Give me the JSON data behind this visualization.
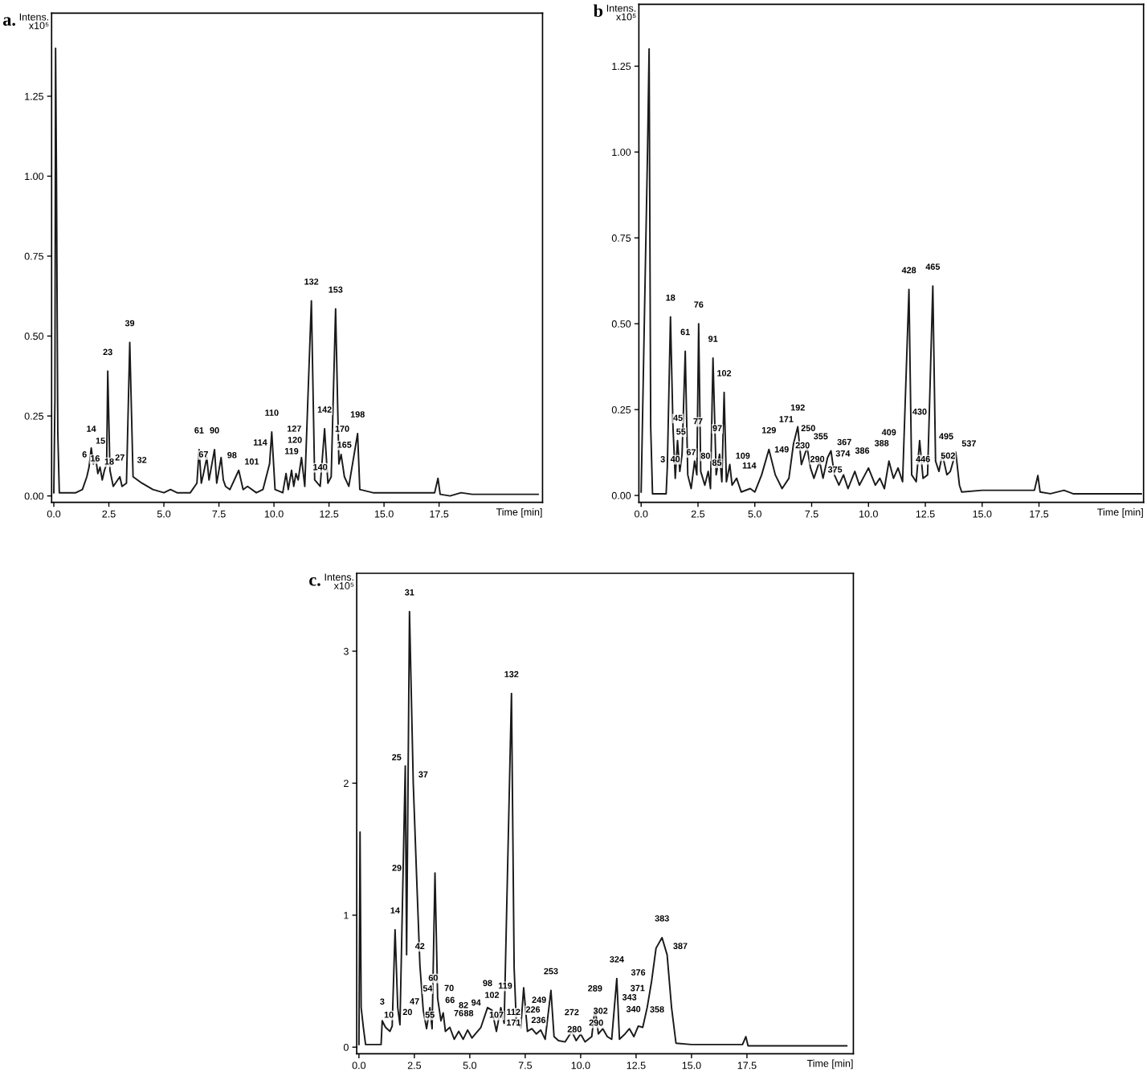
{
  "chart_data": [
    {
      "type": "line",
      "title": "a.",
      "xlabel": "Time [min]",
      "ylabel": "Intens.\nx10⁵",
      "color": "#1a1a1a",
      "x": [
        0.0,
        0.05,
        0.08,
        0.12,
        0.18,
        0.25,
        1.0,
        1.3,
        1.5,
        1.6,
        1.7,
        1.8,
        1.9,
        2.0,
        2.1,
        2.2,
        2.3,
        2.4,
        2.45,
        2.55,
        2.7,
        3.0,
        3.1,
        3.3,
        3.45,
        3.6,
        4.0,
        4.5,
        5.0,
        5.3,
        5.6,
        6.2,
        6.5,
        6.6,
        6.7,
        6.8,
        6.95,
        7.05,
        7.3,
        7.4,
        7.6,
        7.7,
        7.8,
        8.0,
        8.4,
        8.6,
        8.8,
        9.2,
        9.5,
        9.8,
        9.9,
        10.05,
        10.4,
        10.55,
        10.65,
        10.8,
        10.9,
        11.0,
        11.1,
        11.25,
        11.4,
        11.7,
        11.85,
        12.1,
        12.3,
        12.45,
        12.6,
        12.8,
        12.95,
        13.05,
        13.2,
        13.4,
        13.8,
        13.9,
        14.5,
        17.3,
        17.45,
        17.55,
        18.0,
        18.5,
        19.0,
        22.0
      ],
      "values": [
        0.01,
        0.3,
        1.4,
        1.0,
        0.2,
        0.01,
        0.01,
        0.02,
        0.06,
        0.09,
        0.15,
        0.1,
        0.12,
        0.07,
        0.09,
        0.05,
        0.08,
        0.1,
        0.39,
        0.08,
        0.03,
        0.06,
        0.03,
        0.04,
        0.48,
        0.06,
        0.04,
        0.02,
        0.01,
        0.02,
        0.01,
        0.01,
        0.04,
        0.145,
        0.04,
        0.07,
        0.12,
        0.05,
        0.145,
        0.04,
        0.12,
        0.05,
        0.03,
        0.02,
        0.08,
        0.02,
        0.03,
        0.01,
        0.02,
        0.1,
        0.2,
        0.02,
        0.01,
        0.07,
        0.02,
        0.08,
        0.03,
        0.07,
        0.05,
        0.12,
        0.03,
        0.61,
        0.05,
        0.03,
        0.21,
        0.04,
        0.06,
        0.585,
        0.1,
        0.13,
        0.06,
        0.03,
        0.195,
        0.02,
        0.01,
        0.01,
        0.055,
        0.005,
        0.0,
        0.01,
        0.005,
        0.005
      ],
      "xlim": [
        -0.1,
        22.2
      ],
      "ylim": [
        -0.02,
        1.51
      ],
      "xticks": [
        {
          "value": 0,
          "label": "0.0"
        },
        {
          "value": 2.5,
          "label": "2.5"
        },
        {
          "value": 5,
          "label": "5.0"
        },
        {
          "value": 7.5,
          "label": "7.5"
        },
        {
          "value": 10,
          "label": "10.0"
        },
        {
          "value": 12.5,
          "label": "12.5"
        },
        {
          "value": 15,
          "label": "15.0"
        },
        {
          "value": 17.5,
          "label": "17.5"
        }
      ],
      "yticks": [
        {
          "value": 0,
          "label": "0.00"
        },
        0.25,
        {
          "value": 0.5,
          "label": "0.50"
        },
        0.75,
        {
          "value": 1,
          "label": "1.00"
        },
        1.25
      ],
      "annotations": [
        {
          "text": "6",
          "x": 1.6,
          "y": 0.09
        },
        {
          "text": "14",
          "x": 1.7,
          "y": 0.15
        },
        {
          "text": "15",
          "x": 1.9,
          "y": 0.12
        },
        {
          "text": "16",
          "x": 2.1,
          "y": 0.09
        },
        {
          "text": "18",
          "x": 2.3,
          "y": 0.08
        },
        {
          "text": "23",
          "x": 2.45,
          "y": 0.39
        },
        {
          "text": "27",
          "x": 3.0,
          "y": 0.06
        },
        {
          "text": "32",
          "x": 3.6,
          "y": 0.06
        },
        {
          "text": "39",
          "x": 3.45,
          "y": 0.48
        },
        {
          "text": "61",
          "x": 6.6,
          "y": 0.145
        },
        {
          "text": "67",
          "x": 6.8,
          "y": 0.07
        },
        {
          "text": "90",
          "x": 7.3,
          "y": 0.145
        },
        {
          "text": "98",
          "x": 7.7,
          "y": 0.05
        },
        {
          "text": "101",
          "x": 8.4,
          "y": 0.08
        },
        {
          "text": "110",
          "x": 9.9,
          "y": 0.2
        },
        {
          "text": "114",
          "x": 9.95,
          "y": 0.14
        },
        {
          "text": "119",
          "x": 10.8,
          "y": 0.08
        },
        {
          "text": "120",
          "x": 10.95,
          "y": 0.11
        },
        {
          "text": "127",
          "x": 11.25,
          "y": 0.12
        },
        {
          "text": "132",
          "x": 11.7,
          "y": 0.61
        },
        {
          "text": "140",
          "x": 12.1,
          "y": 0.03
        },
        {
          "text": "142",
          "x": 12.3,
          "y": 0.21
        },
        {
          "text": "153",
          "x": 12.8,
          "y": 0.585
        },
        {
          "text": "165",
          "x": 13.2,
          "y": 0.1
        },
        {
          "text": "170",
          "x": 13.1,
          "y": 0.15
        },
        {
          "text": "198",
          "x": 13.8,
          "y": 0.195
        }
      ]
    },
    {
      "type": "line",
      "title": "b",
      "xlabel": "Time [min]",
      "ylabel": "Intens.\nx10⁵",
      "color": "#1a1a1a",
      "x": [
        0.0,
        0.28,
        0.35,
        0.42,
        0.5,
        1.1,
        1.15,
        1.29,
        1.4,
        1.5,
        1.6,
        1.7,
        1.8,
        1.94,
        2.05,
        2.2,
        2.35,
        2.45,
        2.53,
        2.62,
        2.8,
        2.95,
        3.05,
        3.16,
        3.3,
        3.45,
        3.55,
        3.65,
        3.75,
        3.9,
        4.0,
        4.2,
        4.4,
        4.8,
        5.0,
        5.3,
        5.62,
        5.9,
        6.2,
        6.5,
        6.7,
        6.89,
        7.05,
        7.3,
        7.45,
        7.6,
        7.85,
        8.0,
        8.2,
        8.35,
        8.5,
        8.7,
        8.9,
        9.1,
        9.4,
        9.6,
        10.0,
        10.3,
        10.5,
        10.7,
        10.9,
        11.1,
        11.3,
        11.5,
        11.78,
        11.9,
        12.1,
        12.25,
        12.4,
        12.6,
        12.83,
        12.95,
        13.1,
        13.25,
        13.45,
        13.6,
        13.84,
        14.0,
        14.1,
        15.0,
        17.3,
        17.45,
        17.55,
        18.0,
        18.6,
        19.0,
        22.0
      ],
      "values": [
        0.01,
        1.0,
        1.3,
        0.2,
        0.005,
        0.005,
        0.08,
        0.52,
        0.2,
        0.05,
        0.16,
        0.07,
        0.12,
        0.42,
        0.06,
        0.02,
        0.1,
        0.06,
        0.5,
        0.07,
        0.03,
        0.07,
        0.02,
        0.4,
        0.06,
        0.12,
        0.04,
        0.3,
        0.04,
        0.09,
        0.03,
        0.05,
        0.01,
        0.02,
        0.01,
        0.06,
        0.134,
        0.06,
        0.02,
        0.05,
        0.15,
        0.2,
        0.09,
        0.14,
        0.08,
        0.05,
        0.1,
        0.05,
        0.11,
        0.13,
        0.06,
        0.03,
        0.06,
        0.02,
        0.07,
        0.03,
        0.08,
        0.03,
        0.05,
        0.02,
        0.1,
        0.05,
        0.08,
        0.04,
        0.6,
        0.06,
        0.04,
        0.16,
        0.05,
        0.06,
        0.61,
        0.1,
        0.07,
        0.12,
        0.06,
        0.07,
        0.126,
        0.03,
        0.01,
        0.015,
        0.015,
        0.058,
        0.01,
        0.005,
        0.015,
        0.005,
        0.005
      ],
      "xlim": [
        -0.1,
        22.1
      ],
      "ylim": [
        -0.02,
        1.43
      ],
      "xticks": [
        {
          "value": 0,
          "label": "0.0"
        },
        {
          "value": 2.5,
          "label": "2.5"
        },
        {
          "value": 5,
          "label": "5.0"
        },
        {
          "value": 7.5,
          "label": "7.5"
        },
        {
          "value": 10,
          "label": "10.0"
        },
        {
          "value": 12.5,
          "label": "12.5"
        },
        {
          "value": 15,
          "label": "15.0"
        },
        {
          "value": 17.5,
          "label": "17.5"
        }
      ],
      "yticks": [
        {
          "value": 0,
          "label": "0.00"
        },
        0.25,
        {
          "value": 0.5,
          "label": "0.50"
        },
        0.75,
        {
          "value": 1,
          "label": "1.00"
        },
        1.25
      ],
      "annotations": [
        {
          "text": "3",
          "x": 1.15,
          "y": 0.08
        },
        {
          "text": "18",
          "x": 1.29,
          "y": 0.52
        },
        {
          "text": "40",
          "x": 1.5,
          "y": 0.05
        },
        {
          "text": "45",
          "x": 1.62,
          "y": 0.17
        },
        {
          "text": "55",
          "x": 1.75,
          "y": 0.13
        },
        {
          "text": "61",
          "x": 1.94,
          "y": 0.42
        },
        {
          "text": "67",
          "x": 2.2,
          "y": 0.07
        },
        {
          "text": "76",
          "x": 2.53,
          "y": 0.5
        },
        {
          "text": "77",
          "x": 2.5,
          "y": 0.16
        },
        {
          "text": "80",
          "x": 2.62,
          "y": 0.09
        },
        {
          "text": "85",
          "x": 2.95,
          "y": 0.07
        },
        {
          "text": "91",
          "x": 3.16,
          "y": 0.4
        },
        {
          "text": "97",
          "x": 3.35,
          "y": 0.14
        },
        {
          "text": "102",
          "x": 3.65,
          "y": 0.3
        },
        {
          "text": "109",
          "x": 3.9,
          "y": 0.09
        },
        {
          "text": "114",
          "x": 4.2,
          "y": 0.05
        },
        {
          "text": "129",
          "x": 5.62,
          "y": 0.134
        },
        {
          "text": "149",
          "x": 6.5,
          "y": 0.05
        },
        {
          "text": "171",
          "x": 6.7,
          "y": 0.15
        },
        {
          "text": "192",
          "x": 6.89,
          "y": 0.2
        },
        {
          "text": "230",
          "x": 7.1,
          "y": 0.09
        },
        {
          "text": "250",
          "x": 7.35,
          "y": 0.14
        },
        {
          "text": "290",
          "x": 7.75,
          "y": 0.05
        },
        {
          "text": "355",
          "x": 7.9,
          "y": 0.1
        },
        {
          "text": "367",
          "x": 8.35,
          "y": 0.13
        },
        {
          "text": "374",
          "x": 8.55,
          "y": 0.085
        },
        {
          "text": "375",
          "x": 8.85,
          "y": 0.05
        },
        {
          "text": "386",
          "x": 9.4,
          "y": 0.07
        },
        {
          "text": "388",
          "x": 10.0,
          "y": 0.08
        },
        {
          "text": "409",
          "x": 10.9,
          "y": 0.1
        },
        {
          "text": "428",
          "x": 11.78,
          "y": 0.6
        },
        {
          "text": "430",
          "x": 12.25,
          "y": 0.16
        },
        {
          "text": "446",
          "x": 12.4,
          "y": 0.05
        },
        {
          "text": "465",
          "x": 12.83,
          "y": 0.61
        },
        {
          "text": "495",
          "x": 13.1,
          "y": 0.1
        },
        {
          "text": "502",
          "x": 13.5,
          "y": 0.06
        },
        {
          "text": "537",
          "x": 13.84,
          "y": 0.126
        }
      ]
    },
    {
      "type": "line",
      "title": "c.",
      "xlabel": "Time [min]",
      "ylabel": "Intens.\nx10⁵",
      "color": "#1a1a1a",
      "x": [
        0.0,
        0.05,
        0.1,
        0.2,
        0.3,
        1.0,
        1.05,
        1.2,
        1.4,
        1.5,
        1.63,
        1.75,
        1.85,
        2.09,
        2.15,
        2.28,
        2.45,
        2.6,
        2.75,
        2.9,
        3.05,
        3.2,
        3.3,
        3.43,
        3.55,
        3.7,
        3.8,
        3.9,
        4.1,
        4.3,
        4.5,
        4.7,
        4.9,
        5.1,
        5.5,
        5.8,
        6.0,
        6.2,
        6.4,
        6.55,
        6.88,
        7.0,
        7.1,
        7.3,
        7.43,
        7.6,
        7.8,
        8.0,
        8.2,
        8.4,
        8.66,
        8.8,
        9.0,
        9.3,
        9.6,
        9.8,
        10.0,
        10.2,
        10.5,
        10.65,
        10.8,
        11.0,
        11.2,
        11.4,
        11.63,
        11.75,
        12.0,
        12.2,
        12.4,
        12.6,
        12.8,
        13.0,
        13.2,
        13.4,
        13.67,
        13.9,
        14.1,
        14.3,
        15.0,
        17.3,
        17.45,
        17.55,
        18.5,
        22.0
      ],
      "values": [
        0.02,
        1.63,
        0.3,
        0.15,
        0.02,
        0.02,
        0.2,
        0.15,
        0.12,
        0.16,
        0.89,
        0.3,
        0.17,
        2.13,
        0.7,
        3.3,
        2.0,
        1.3,
        0.62,
        0.28,
        0.14,
        0.3,
        0.14,
        1.32,
        0.37,
        0.2,
        0.26,
        0.12,
        0.15,
        0.06,
        0.12,
        0.06,
        0.13,
        0.07,
        0.15,
        0.3,
        0.28,
        0.12,
        0.3,
        0.18,
        2.68,
        0.6,
        0.18,
        0.15,
        0.45,
        0.12,
        0.14,
        0.1,
        0.13,
        0.06,
        0.43,
        0.08,
        0.05,
        0.04,
        0.12,
        0.05,
        0.1,
        0.04,
        0.08,
        0.3,
        0.1,
        0.14,
        0.08,
        0.06,
        0.52,
        0.06,
        0.1,
        0.14,
        0.08,
        0.16,
        0.15,
        0.3,
        0.5,
        0.75,
        0.83,
        0.7,
        0.3,
        0.03,
        0.02,
        0.02,
        0.08,
        0.01,
        0.01,
        0.01
      ],
      "xlim": [
        -0.1,
        22.3
      ],
      "ylim": [
        -0.05,
        3.59
      ],
      "xticks": [
        {
          "value": 0,
          "label": "0.0"
        },
        {
          "value": 2.5,
          "label": "2.5"
        },
        {
          "value": 5,
          "label": "5.0"
        },
        {
          "value": 7.5,
          "label": "7.5"
        },
        {
          "value": 10,
          "label": "10.0"
        },
        {
          "value": 12.5,
          "label": "12.5"
        },
        {
          "value": 15,
          "label": "15.0"
        },
        {
          "value": 17.5,
          "label": "17.5"
        }
      ],
      "yticks": [
        0,
        1,
        2,
        3
      ],
      "annotations": [
        {
          "text": "3",
          "x": 1.05,
          "y": 0.2
        },
        {
          "text": "10",
          "x": 1.35,
          "y": 0.1
        },
        {
          "text": "14",
          "x": 1.63,
          "y": 0.89
        },
        {
          "text": "20",
          "x": 1.8,
          "y": 0.2
        },
        {
          "text": "25",
          "x": 2.09,
          "y": 2.13
        },
        {
          "text": "29",
          "x": 2.1,
          "y": 1.17
        },
        {
          "text": "31",
          "x": 2.28,
          "y": 3.3
        },
        {
          "text": "37",
          "x": 2.5,
          "y": 2.0
        },
        {
          "text": "42",
          "x": 2.75,
          "y": 0.62
        },
        {
          "text": "47",
          "x": 2.9,
          "y": 0.22
        },
        {
          "text": "54",
          "x": 3.1,
          "y": 0.3
        },
        {
          "text": "55",
          "x": 3.2,
          "y": 0.1
        },
        {
          "text": "60",
          "x": 3.35,
          "y": 0.38
        },
        {
          "text": "66",
          "x": 3.7,
          "y": 0.2
        },
        {
          "text": "70",
          "x": 3.85,
          "y": 0.26
        },
        {
          "text": "76",
          "x": 4.1,
          "y": 0.1
        },
        {
          "text": "82",
          "x": 4.5,
          "y": 0.1
        },
        {
          "text": "88",
          "x": 4.95,
          "y": 0.1
        },
        {
          "text": "94",
          "x": 5.5,
          "y": 0.15
        },
        {
          "text": "98",
          "x": 5.8,
          "y": 0.34
        },
        {
          "text": "102",
          "x": 6.0,
          "y": 0.25
        },
        {
          "text": "107",
          "x": 6.2,
          "y": 0.1
        },
        {
          "text": "112",
          "x": 6.4,
          "y": 0.2
        },
        {
          "text": "119",
          "x": 6.6,
          "y": 0.32
        },
        {
          "text": "132",
          "x": 6.88,
          "y": 2.68
        },
        {
          "text": "171",
          "x": 7.3,
          "y": 0.12
        },
        {
          "text": "226",
          "x": 7.85,
          "y": 0.14
        },
        {
          "text": "236",
          "x": 8.1,
          "y": 0.06
        },
        {
          "text": "249",
          "x": 8.45,
          "y": 0.14
        },
        {
          "text": "253",
          "x": 8.66,
          "y": 0.43
        },
        {
          "text": "272",
          "x": 9.6,
          "y": 0.12
        },
        {
          "text": "280",
          "x": 10.05,
          "y": 0.07
        },
        {
          "text": "289",
          "x": 10.65,
          "y": 0.3
        },
        {
          "text": "290",
          "x": 10.7,
          "y": 0.04
        },
        {
          "text": "302",
          "x": 10.9,
          "y": 0.13
        },
        {
          "text": "324",
          "x": 11.63,
          "y": 0.52
        },
        {
          "text": "340",
          "x": 12.05,
          "y": 0.07
        },
        {
          "text": "343",
          "x": 12.2,
          "y": 0.16
        },
        {
          "text": "358",
          "x": 12.85,
          "y": 0.22
        },
        {
          "text": "371",
          "x": 12.9,
          "y": 0.32
        },
        {
          "text": "376",
          "x": 13.2,
          "y": 0.5
        },
        {
          "text": "383",
          "x": 13.67,
          "y": 0.83
        },
        {
          "text": "387",
          "x": 13.9,
          "y": 0.7
        }
      ]
    }
  ]
}
